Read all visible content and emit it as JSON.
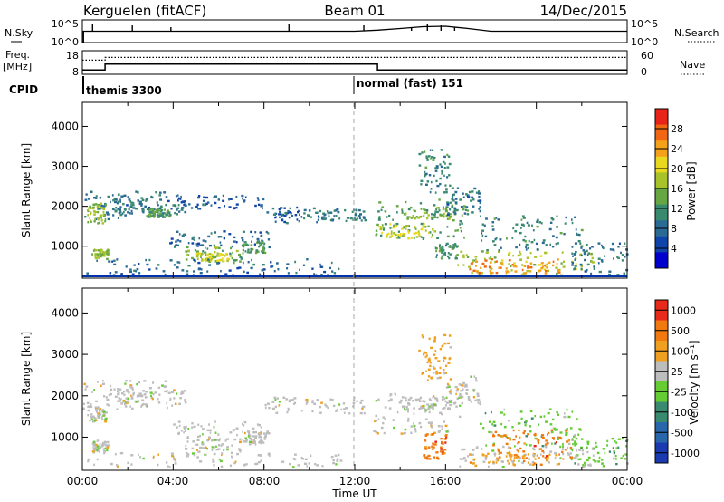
{
  "header": {
    "station": "Kerguelen (fitACF)",
    "beam": "Beam 01",
    "date": "14/Dec/2015"
  },
  "noise_panel": {
    "left_label": "N.Sky",
    "right_label": "N.Search",
    "left_ticks": [
      "10^5",
      "10^0"
    ],
    "right_ticks": [
      "10^5",
      "10^0"
    ]
  },
  "freq_panel": {
    "left_label_line1": "Freq.",
    "left_label_line2": "[MHz]",
    "right_label": "Nave",
    "left_ticks": [
      "18",
      "8"
    ],
    "right_ticks": [
      "60",
      "0"
    ]
  },
  "cpid": {
    "label": "CPID",
    "modes": [
      {
        "name": "themis 3300"
      },
      {
        "name": "normal (fast) 151"
      }
    ]
  },
  "time_axis": {
    "label": "Time UT",
    "ticks": [
      "00:00",
      "04:00",
      "08:00",
      "12:00",
      "16:00",
      "20:00",
      "00:00"
    ]
  },
  "chart_data": [
    {
      "type": "line",
      "name": "noise",
      "ylabel": "N.Sky",
      "y2label": "N.Search",
      "yscale": "log",
      "x_hours": [
        0,
        0.3,
        0.9,
        2,
        3,
        4,
        6,
        8,
        9,
        10,
        12,
        13,
        14,
        15,
        16,
        17,
        18,
        20,
        22,
        24
      ],
      "level": [
        0.5,
        0.5,
        0.5,
        0.5,
        0.5,
        0.5,
        0.5,
        0.5,
        0.5,
        0.5,
        0.5,
        0.55,
        0.62,
        0.7,
        0.72,
        0.62,
        0.5,
        0.5,
        0.5,
        0.5
      ]
    },
    {
      "type": "line",
      "name": "frequency-nave",
      "ylabel": "Freq. [MHz]",
      "y2label": "Nave",
      "ylim": [
        8,
        18
      ],
      "y2lim": [
        0,
        60
      ],
      "frequency": {
        "x_hours": [
          0,
          1,
          1,
          13,
          13,
          24
        ],
        "values": [
          9.8,
          9.8,
          12.3,
          12.3,
          9.8,
          9.8
        ]
      },
      "nave": {
        "x_hours": [
          0,
          1,
          1,
          24
        ],
        "values": [
          36,
          36,
          43,
          43
        ]
      }
    },
    {
      "type": "heatmap",
      "name": "power",
      "ylabel": "Slant Range [km]",
      "colorbar_label": "Power [dB]",
      "xlim": [
        0,
        24
      ],
      "ylim": [
        200,
        4600
      ],
      "yticks": [
        1000,
        2000,
        3000,
        4000
      ],
      "colorbar_ticks": [
        "4",
        "8",
        "12",
        "16",
        "20",
        "24",
        "28"
      ],
      "colorbar_range": [
        0,
        32
      ],
      "colors": [
        "#0000cc",
        "#1144aa",
        "#2a6a95",
        "#3a8a70",
        "#66a744",
        "#a8c22a",
        "#e8d820",
        "#f4a21a",
        "#f06612",
        "#e8241a"
      ],
      "regions": [
        {
          "t": [
            0,
            4.2
          ],
          "r": [
            1700,
            2400
          ],
          "p": 9
        },
        {
          "t": [
            0.2,
            1.0
          ],
          "r": [
            1600,
            2100
          ],
          "p": 17
        },
        {
          "t": [
            0.4,
            1.1
          ],
          "r": [
            700,
            950
          ],
          "p": 16
        },
        {
          "t": [
            1.0,
            4.5
          ],
          "r": [
            1800,
            2200
          ],
          "p": 8
        },
        {
          "t": [
            2.8,
            3.8
          ],
          "r": [
            1750,
            1950
          ],
          "p": 13
        },
        {
          "t": [
            3.8,
            8.2
          ],
          "r": [
            1000,
            1400
          ],
          "p": 7
        },
        {
          "t": [
            4.5,
            7.0
          ],
          "r": [
            600,
            1000
          ],
          "p": 14
        },
        {
          "t": [
            5.0,
            6.5
          ],
          "r": [
            650,
            850
          ],
          "p": 20
        },
        {
          "t": [
            7.0,
            8.0
          ],
          "r": [
            850,
            1150
          ],
          "p": 12
        },
        {
          "t": [
            4.0,
            8.0
          ],
          "r": [
            1950,
            2300
          ],
          "p": 6
        },
        {
          "t": [
            8.0,
            10.5
          ],
          "r": [
            1600,
            2000
          ],
          "p": 7
        },
        {
          "t": [
            10.5,
            12.5
          ],
          "r": [
            1650,
            1950
          ],
          "p": 9
        },
        {
          "t": [
            0,
            11.5
          ],
          "r": [
            300,
            700
          ],
          "p": 7
        },
        {
          "t": [
            12.8,
            17.0
          ],
          "r": [
            1200,
            2200
          ],
          "p": 12
        },
        {
          "t": [
            13.0,
            15.5
          ],
          "r": [
            1200,
            1600
          ],
          "p": 20
        },
        {
          "t": [
            14.0,
            16.2
          ],
          "r": [
            1700,
            2000
          ],
          "p": 15
        },
        {
          "t": [
            14.8,
            16.2
          ],
          "r": [
            2300,
            3500
          ],
          "p": 10
        },
        {
          "t": [
            16.0,
            17.5
          ],
          "r": [
            1800,
            2500
          ],
          "p": 8
        },
        {
          "t": [
            15.5,
            16.5
          ],
          "r": [
            700,
            1100
          ],
          "p": 11
        },
        {
          "t": [
            16.5,
            22.5
          ],
          "r": [
            300,
            900
          ],
          "p": 18
        },
        {
          "t": [
            17.0,
            21.0
          ],
          "r": [
            350,
            700
          ],
          "p": 26
        },
        {
          "t": [
            17.5,
            22.0
          ],
          "r": [
            900,
            1800
          ],
          "p": 10
        },
        {
          "t": [
            21.5,
            24.0
          ],
          "r": [
            300,
            1100
          ],
          "p": 8
        }
      ]
    },
    {
      "type": "heatmap",
      "name": "velocity",
      "ylabel": "Slant Range [km]",
      "colorbar_label": "Velocity [m s⁻¹]",
      "xlim": [
        0,
        24
      ],
      "ylim": [
        200,
        4600
      ],
      "yticks": [
        1000,
        2000,
        3000,
        4000
      ],
      "colorbar_ticks": [
        "1000",
        "500",
        "100",
        "25",
        "-25",
        "-100",
        "-500",
        "-1000"
      ],
      "colors": [
        "#1a3ab0",
        "#2a66aa",
        "#3a8a70",
        "#66cc33",
        "#bdbdbd",
        "#f0a020",
        "#f07a10",
        "#e82a1a"
      ],
      "regions": [
        {
          "t": [
            0,
            4.2
          ],
          "r": [
            1700,
            2400
          ],
          "v": 4
        },
        {
          "t": [
            0.2,
            1.0
          ],
          "r": [
            1400,
            1800
          ],
          "v": 4
        },
        {
          "t": [
            0.4,
            1.1
          ],
          "r": [
            650,
            950
          ],
          "v": 4
        },
        {
          "t": [
            1.0,
            4.5
          ],
          "r": [
            1800,
            2200
          ],
          "v": 4
        },
        {
          "t": [
            3.8,
            8.2
          ],
          "r": [
            1000,
            1400
          ],
          "v": 4
        },
        {
          "t": [
            4.5,
            7.0
          ],
          "r": [
            600,
            1000
          ],
          "v": 4
        },
        {
          "t": [
            7.0,
            8.0
          ],
          "r": [
            850,
            1150
          ],
          "v": 4
        },
        {
          "t": [
            8.0,
            12.5
          ],
          "r": [
            1600,
            2000
          ],
          "v": 4
        },
        {
          "t": [
            0,
            11.5
          ],
          "r": [
            300,
            650
          ],
          "v": 4
        },
        {
          "t": [
            12.8,
            17.0
          ],
          "r": [
            1100,
            2100
          ],
          "v": 4
        },
        {
          "t": [
            14.0,
            16.2
          ],
          "r": [
            1700,
            2000
          ],
          "v": 4
        },
        {
          "t": [
            14.8,
            16.2
          ],
          "r": [
            2400,
            3500
          ],
          "v": 5
        },
        {
          "t": [
            16.0,
            17.5
          ],
          "r": [
            1800,
            2500
          ],
          "v": 4
        },
        {
          "t": [
            15.0,
            16.0
          ],
          "r": [
            500,
            1100
          ],
          "v": 6
        },
        {
          "t": [
            16.5,
            22.5
          ],
          "r": [
            300,
            800
          ],
          "v": 4
        },
        {
          "t": [
            17.0,
            21.0
          ],
          "r": [
            350,
            650
          ],
          "v": 5
        },
        {
          "t": [
            17.5,
            22.0
          ],
          "r": [
            800,
            1700
          ],
          "v": 3
        },
        {
          "t": [
            18.0,
            21.5
          ],
          "r": [
            500,
            1200
          ],
          "v": 6
        },
        {
          "t": [
            21.5,
            24.0
          ],
          "r": [
            300,
            1000
          ],
          "v": 3
        }
      ]
    }
  ]
}
